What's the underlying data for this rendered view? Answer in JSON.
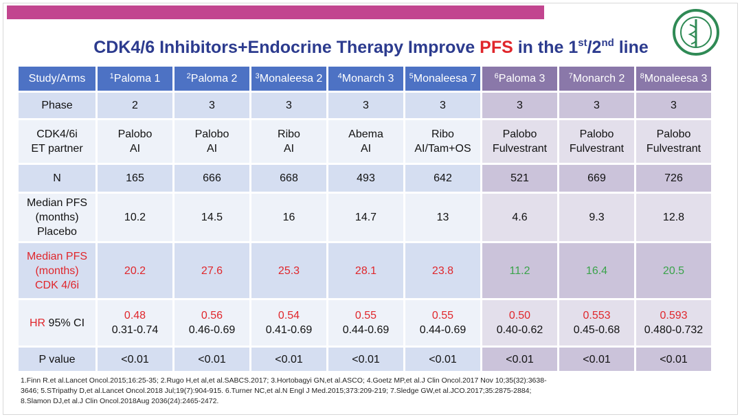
{
  "title": [
    "CDK4/6 Inhibitors+Endocrine Therapy Improve ",
    "PFS",
    " in the 1",
    "st",
    "/2",
    "nd",
    " line"
  ],
  "table": {
    "header": [
      {
        "text": "Study/Arms"
      },
      {
        "sup": "1",
        "text": "Paloma 1"
      },
      {
        "sup": "2",
        "text": "Paloma 2"
      },
      {
        "sup": "3",
        "text": "Monaleesa 2"
      },
      {
        "sup": "4",
        "text": "Monarch 3"
      },
      {
        "sup": "5",
        "text": "Monaleesa 7"
      },
      {
        "sup": "6",
        "text": "Paloma 3"
      },
      {
        "sup": "7",
        "text": "Monarch 2"
      },
      {
        "sup": "8",
        "text": "Monaleesa 3"
      }
    ],
    "rows": [
      {
        "label": [
          "Phase"
        ],
        "cells": [
          [
            "2"
          ],
          [
            "3"
          ],
          [
            "3"
          ],
          [
            "3"
          ],
          [
            "3"
          ],
          [
            "3"
          ],
          [
            "3"
          ],
          [
            "3"
          ]
        ]
      },
      {
        "label": [
          "CDK4/6i",
          "ET partner"
        ],
        "cells": [
          [
            "Palobo",
            "AI"
          ],
          [
            "Palobo",
            "AI"
          ],
          [
            "Ribo",
            "AI"
          ],
          [
            "Abema",
            "AI"
          ],
          [
            "Ribo",
            "AI/Tam+OS"
          ],
          [
            "Palobo",
            "Fulvestrant"
          ],
          [
            "Palobo",
            "Fulvestrant"
          ],
          [
            "Palobo",
            "Fulvestrant"
          ]
        ]
      },
      {
        "label": [
          "N"
        ],
        "cells": [
          [
            "165"
          ],
          [
            "666"
          ],
          [
            "668"
          ],
          [
            "493"
          ],
          [
            "642"
          ],
          [
            "521"
          ],
          [
            "669"
          ],
          [
            "726"
          ]
        ]
      },
      {
        "label": [
          "Median PFS",
          "(months)",
          "Placebo"
        ],
        "cells": [
          [
            "10.2"
          ],
          [
            "14.5"
          ],
          [
            "16"
          ],
          [
            "14.7"
          ],
          [
            "13"
          ],
          [
            "4.6"
          ],
          [
            "9.3"
          ],
          [
            "12.8"
          ]
        ]
      },
      {
        "label": [
          "Median PFS",
          "(months)",
          "CDK 4/6i"
        ],
        "cells": [
          [
            "20.2"
          ],
          [
            "27.6"
          ],
          [
            "25.3"
          ],
          [
            "28.1"
          ],
          [
            "23.8"
          ],
          [
            "11.2"
          ],
          [
            "16.4"
          ],
          [
            "20.5"
          ]
        ]
      },
      {
        "label": [
          [
            "HR",
            " 95% CI"
          ]
        ],
        "cells": [
          [
            "0.48",
            "0.31-0.74"
          ],
          [
            "0.56",
            "0.46-0.69"
          ],
          [
            "0.54",
            "0.41-0.69"
          ],
          [
            "0.55",
            "0.44-0.69"
          ],
          [
            "0.55",
            "0.44-0.69"
          ],
          [
            "0.50",
            "0.40-0.62"
          ],
          [
            "0.553",
            "0.45-0.68"
          ],
          [
            "0.593",
            "0.480-0.732"
          ]
        ]
      },
      {
        "label": [
          "P value"
        ],
        "cells": [
          [
            "<0.01"
          ],
          [
            "<0.01"
          ],
          [
            "<0.01"
          ],
          [
            "<0.01"
          ],
          [
            "<0.01"
          ],
          [
            "<0.01"
          ],
          [
            "<0.01"
          ],
          [
            "<0.01"
          ]
        ]
      }
    ]
  },
  "footnotes": [
    "1.Finn R.et al.Lancet Oncol.2015;16:25-35; 2.Rugo H,et al,et al.SABCS.2017; 3.Hortobagyi GN,et al.ASCO; 4.Goetz MP,et al.J Clin Oncol.2017 Nov 10;35(32):3638-",
    "3646; 5.STripathy D,et al.Lancet Oncol.2018 Jul;19(7):904-915. 6.Turner NC,et al.N Engl J Med.2015;373:209-219; 7.Sledge GW,et al.JCO.2017;35:2875-2884;",
    "8.Slamon DJ,et al.J Clin Oncol.2018Aug 2036(24):2465-2472."
  ]
}
